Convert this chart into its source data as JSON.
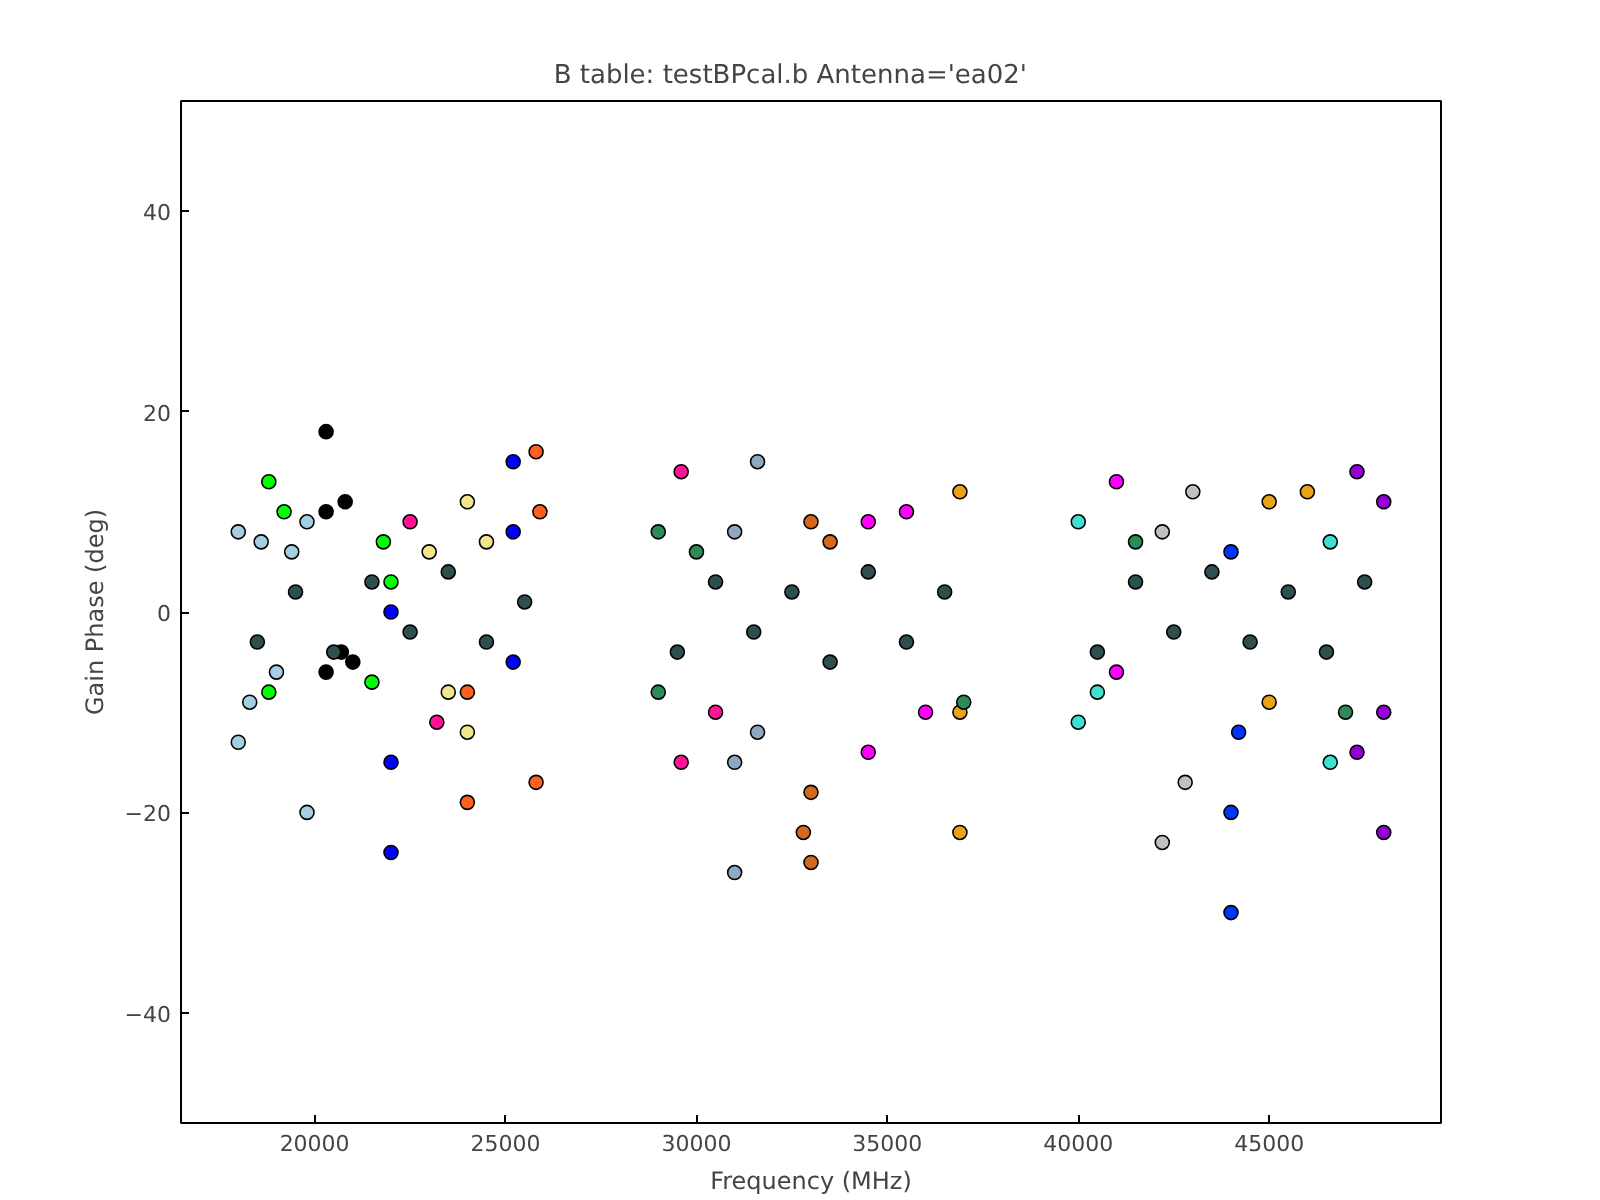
{
  "chart_data": {
    "type": "scatter",
    "title": "B table: testBPcal.b      Antenna='ea02'",
    "xlabel": "Frequency (MHz)",
    "ylabel": "Gain Phase (deg)",
    "xlim": [
      16500,
      49500
    ],
    "ylim": [
      -51,
      51
    ],
    "xticks": [
      20000,
      25000,
      30000,
      35000,
      40000,
      45000
    ],
    "yticks": [
      -40,
      -20,
      0,
      20,
      40
    ],
    "grid": false,
    "marker": "circle",
    "series": [
      {
        "color": "#a6cee3",
        "x": [
          18000,
          18000,
          18300,
          18600,
          19000,
          19400,
          19800,
          19800
        ],
        "values": [
          -13,
          8,
          -9,
          7,
          -6,
          6,
          -20,
          9
        ]
      },
      {
        "color": "#000000",
        "x": [
          20300,
          20300,
          20300,
          20700,
          20800,
          21000
        ],
        "values": [
          18,
          -6,
          10,
          -4,
          11,
          -5
        ]
      },
      {
        "color": "#00ff00",
        "x": [
          18800,
          18800,
          19200,
          21500,
          21800,
          22000
        ],
        "values": [
          13,
          -8,
          10,
          -7,
          7,
          3
        ]
      },
      {
        "color": "#0000ff",
        "x": [
          22000,
          22000,
          22000,
          25200,
          25200,
          25200
        ],
        "values": [
          -24,
          -15,
          0,
          15,
          -5,
          8
        ]
      },
      {
        "color": "#ff6020",
        "x": [
          24000,
          24000,
          25800,
          25800,
          25900
        ],
        "values": [
          -19,
          -8,
          16,
          -17,
          10
        ]
      },
      {
        "color": "#f0e68c",
        "x": [
          23000,
          23500,
          24000,
          24000,
          24500
        ],
        "values": [
          6,
          -8,
          11,
          -12,
          7
        ]
      },
      {
        "color": "#ff1493",
        "x": [
          22500,
          23200,
          29600,
          29600,
          30500
        ],
        "values": [
          9,
          -11,
          14,
          -15,
          -10
        ]
      },
      {
        "color": "#8fa8c0",
        "x": [
          31000,
          31000,
          31000,
          31600,
          31600
        ],
        "values": [
          -26,
          -15,
          8,
          15,
          -12
        ]
      },
      {
        "color": "#d2691e",
        "x": [
          32800,
          33000,
          33000,
          33000,
          33500
        ],
        "values": [
          -22,
          -25,
          9,
          -18,
          7
        ]
      },
      {
        "color": "#ff00ff",
        "x": [
          34500,
          34500,
          35500,
          36000,
          41000,
          41000
        ],
        "values": [
          -14,
          9,
          10,
          -10,
          13,
          -6
        ]
      },
      {
        "color": "#e8a317",
        "x": [
          36900,
          36900,
          36900,
          45000,
          45000,
          46000
        ],
        "values": [
          -22,
          12,
          -10,
          11,
          -9,
          12
        ]
      },
      {
        "color": "#40e0d0",
        "x": [
          40000,
          40000,
          40500,
          46600,
          46600
        ],
        "values": [
          -11,
          9,
          -8,
          -15,
          7
        ]
      },
      {
        "color": "#c0c0c0",
        "x": [
          42200,
          42200,
          42800,
          43000
        ],
        "values": [
          -23,
          8,
          -17,
          12
        ]
      },
      {
        "color": "#0033ff",
        "x": [
          44000,
          44000,
          44000,
          44200
        ],
        "values": [
          -30,
          -20,
          6,
          -12
        ]
      },
      {
        "color": "#9400d3",
        "x": [
          47300,
          47300,
          48000,
          48000,
          48000
        ],
        "values": [
          14,
          -14,
          -22,
          11,
          -10
        ]
      },
      {
        "color": "#2e8b57",
        "x": [
          29000,
          29000,
          30000,
          37000,
          41500,
          47000
        ],
        "values": [
          8,
          -8,
          6,
          -9,
          7,
          -10
        ]
      },
      {
        "color": "#2f4f4f",
        "x": [
          18500,
          19500,
          20500,
          21500,
          22500,
          23500,
          24500,
          25500,
          29500,
          30500,
          31500,
          32500,
          33500,
          34500,
          35500,
          36500,
          40500,
          41500,
          42500,
          43500,
          44500,
          45500,
          46500,
          47500
        ],
        "values": [
          -3,
          2,
          -4,
          3,
          -2,
          4,
          -3,
          1,
          -4,
          3,
          -2,
          2,
          -5,
          4,
          -3,
          2,
          -4,
          3,
          -2,
          4,
          -3,
          2,
          -4,
          3
        ]
      }
    ]
  }
}
